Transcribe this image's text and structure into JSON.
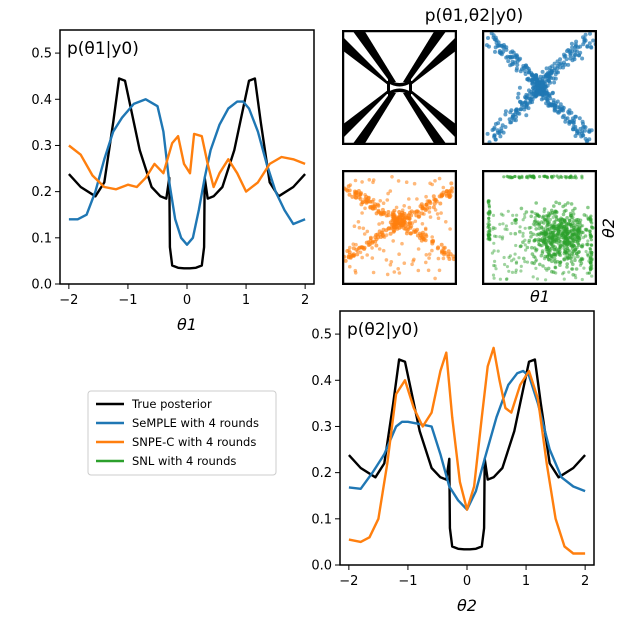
{
  "colors": {
    "true_posterior": "#000000",
    "semple": "#1f77b4",
    "snpe": "#ff7f0e",
    "snl": "#2ca02c"
  },
  "legend": {
    "items": [
      {
        "label": "True posterior",
        "color": "#000000"
      },
      {
        "label": "SeMPLE with 4 rounds",
        "color": "#1f77b4"
      },
      {
        "label": "SNPE-C with 4 rounds",
        "color": "#ff7f0e"
      },
      {
        "label": "SNL with 4 rounds",
        "color": "#2ca02c"
      }
    ]
  },
  "chart_data": [
    {
      "id": "theta1_marginal",
      "type": "line",
      "title": "p(θ1|y0)",
      "xlabel": "θ1",
      "ylabel": "",
      "xlim": [
        -2.15,
        2.15
      ],
      "ylim": [
        0.0,
        0.55
      ],
      "xticks": [
        -2,
        -1,
        0,
        1,
        2
      ],
      "yticks": [
        0.0,
        0.1,
        0.2,
        0.3,
        0.4,
        0.5
      ],
      "xtick_labels": [
        "−2",
        "−1",
        "0",
        "1",
        "2"
      ],
      "ytick_labels": [
        "0.0",
        "0.1",
        "0.2",
        "0.3",
        "0.4",
        "0.5"
      ],
      "series": [
        {
          "name": "True posterior",
          "key": "true_posterior",
          "x": [
            -2.0,
            -1.8,
            -1.55,
            -1.4,
            -1.25,
            -1.15,
            -1.05,
            -0.95,
            -0.8,
            -0.6,
            -0.45,
            -0.35,
            -0.3,
            -0.29,
            -0.25,
            -0.15,
            -0.05,
            0.05,
            0.15,
            0.25,
            0.29,
            0.3,
            0.35,
            0.45,
            0.6,
            0.8,
            0.95,
            1.05,
            1.15,
            1.25,
            1.4,
            1.55,
            1.8,
            2.0
          ],
          "y": [
            0.238,
            0.21,
            0.19,
            0.22,
            0.35,
            0.445,
            0.44,
            0.38,
            0.29,
            0.21,
            0.19,
            0.185,
            0.23,
            0.08,
            0.04,
            0.035,
            0.034,
            0.034,
            0.035,
            0.04,
            0.08,
            0.23,
            0.185,
            0.19,
            0.21,
            0.29,
            0.38,
            0.44,
            0.445,
            0.35,
            0.22,
            0.19,
            0.21,
            0.238
          ]
        },
        {
          "name": "SeMPLE with 4 rounds",
          "key": "semple",
          "x": [
            -2.0,
            -1.85,
            -1.7,
            -1.55,
            -1.4,
            -1.25,
            -1.1,
            -0.9,
            -0.7,
            -0.5,
            -0.4,
            -0.3,
            -0.2,
            -0.1,
            0.0,
            0.1,
            0.2,
            0.3,
            0.4,
            0.55,
            0.7,
            0.85,
            0.95,
            1.05,
            1.2,
            1.35,
            1.5,
            1.65,
            1.8,
            2.0
          ],
          "y": [
            0.14,
            0.14,
            0.15,
            0.2,
            0.27,
            0.33,
            0.36,
            0.39,
            0.4,
            0.385,
            0.33,
            0.22,
            0.14,
            0.1,
            0.085,
            0.1,
            0.16,
            0.23,
            0.29,
            0.345,
            0.38,
            0.395,
            0.395,
            0.38,
            0.33,
            0.26,
            0.2,
            0.16,
            0.13,
            0.14
          ]
        },
        {
          "name": "SNPE-C with 4 rounds",
          "key": "snpe",
          "x": [
            -2.0,
            -1.8,
            -1.6,
            -1.4,
            -1.2,
            -1.0,
            -0.85,
            -0.7,
            -0.55,
            -0.4,
            -0.25,
            -0.15,
            -0.05,
            0.05,
            0.12,
            0.25,
            0.35,
            0.45,
            0.55,
            0.7,
            0.85,
            1.0,
            1.2,
            1.4,
            1.6,
            1.8,
            2.0
          ],
          "y": [
            0.3,
            0.28,
            0.235,
            0.21,
            0.205,
            0.215,
            0.21,
            0.23,
            0.26,
            0.24,
            0.305,
            0.32,
            0.26,
            0.24,
            0.325,
            0.32,
            0.26,
            0.21,
            0.24,
            0.27,
            0.24,
            0.2,
            0.22,
            0.26,
            0.275,
            0.27,
            0.26
          ]
        }
      ]
    },
    {
      "id": "joint_posteriors",
      "type": "scatter",
      "title": "p(θ1,θ2|y0)",
      "xlabel": "θ1",
      "ylabel": "θ2",
      "panels": [
        "True posterior",
        "SeMPLE with 4 rounds",
        "SNPE-C with 4 rounds",
        "SNL with 4 rounds"
      ]
    },
    {
      "id": "theta2_marginal",
      "type": "line",
      "title": "p(θ2|y0)",
      "xlabel": "θ2",
      "ylabel": "",
      "xlim": [
        -2.15,
        2.15
      ],
      "ylim": [
        0.0,
        0.55
      ],
      "xticks": [
        -2,
        -1,
        0,
        1,
        2
      ],
      "yticks": [
        0.0,
        0.1,
        0.2,
        0.3,
        0.4,
        0.5
      ],
      "xtick_labels": [
        "−2",
        "−1",
        "0",
        "1",
        "2"
      ],
      "ytick_labels": [
        "0.0",
        "0.1",
        "0.2",
        "0.3",
        "0.4",
        "0.5"
      ],
      "series": [
        {
          "name": "True posterior",
          "key": "true_posterior",
          "x": [
            -2.0,
            -1.8,
            -1.55,
            -1.4,
            -1.25,
            -1.15,
            -1.05,
            -0.95,
            -0.8,
            -0.6,
            -0.45,
            -0.35,
            -0.3,
            -0.29,
            -0.25,
            -0.15,
            -0.05,
            0.05,
            0.15,
            0.25,
            0.29,
            0.3,
            0.35,
            0.45,
            0.6,
            0.8,
            0.95,
            1.05,
            1.15,
            1.25,
            1.4,
            1.55,
            1.8,
            2.0
          ],
          "y": [
            0.238,
            0.21,
            0.19,
            0.22,
            0.35,
            0.445,
            0.44,
            0.38,
            0.29,
            0.21,
            0.19,
            0.185,
            0.23,
            0.08,
            0.04,
            0.035,
            0.034,
            0.034,
            0.035,
            0.04,
            0.08,
            0.23,
            0.185,
            0.19,
            0.21,
            0.29,
            0.38,
            0.44,
            0.445,
            0.35,
            0.22,
            0.19,
            0.21,
            0.238
          ]
        },
        {
          "name": "SeMPLE with 4 rounds",
          "key": "semple",
          "x": [
            -2.0,
            -1.8,
            -1.6,
            -1.4,
            -1.2,
            -1.1,
            -1.0,
            -0.8,
            -0.6,
            -0.45,
            -0.3,
            -0.15,
            0.0,
            0.15,
            0.3,
            0.5,
            0.7,
            0.85,
            0.95,
            1.05,
            1.2,
            1.4,
            1.6,
            1.8,
            2.0
          ],
          "y": [
            0.168,
            0.165,
            0.2,
            0.24,
            0.3,
            0.31,
            0.31,
            0.305,
            0.3,
            0.24,
            0.17,
            0.14,
            0.12,
            0.16,
            0.23,
            0.32,
            0.39,
            0.415,
            0.42,
            0.41,
            0.35,
            0.25,
            0.19,
            0.17,
            0.16
          ]
        },
        {
          "name": "SNPE-C with 4 rounds",
          "key": "snpe",
          "x": [
            -2.0,
            -1.8,
            -1.65,
            -1.5,
            -1.35,
            -1.2,
            -1.05,
            -0.9,
            -0.75,
            -0.6,
            -0.45,
            -0.35,
            -0.25,
            -0.12,
            0.0,
            0.12,
            0.25,
            0.35,
            0.45,
            0.55,
            0.65,
            0.75,
            0.9,
            1.05,
            1.2,
            1.35,
            1.5,
            1.65,
            1.8,
            2.0
          ],
          "y": [
            0.055,
            0.05,
            0.06,
            0.1,
            0.22,
            0.37,
            0.4,
            0.34,
            0.3,
            0.33,
            0.42,
            0.46,
            0.32,
            0.18,
            0.12,
            0.17,
            0.32,
            0.43,
            0.47,
            0.4,
            0.34,
            0.33,
            0.39,
            0.42,
            0.36,
            0.22,
            0.1,
            0.04,
            0.025,
            0.025
          ]
        }
      ]
    }
  ]
}
